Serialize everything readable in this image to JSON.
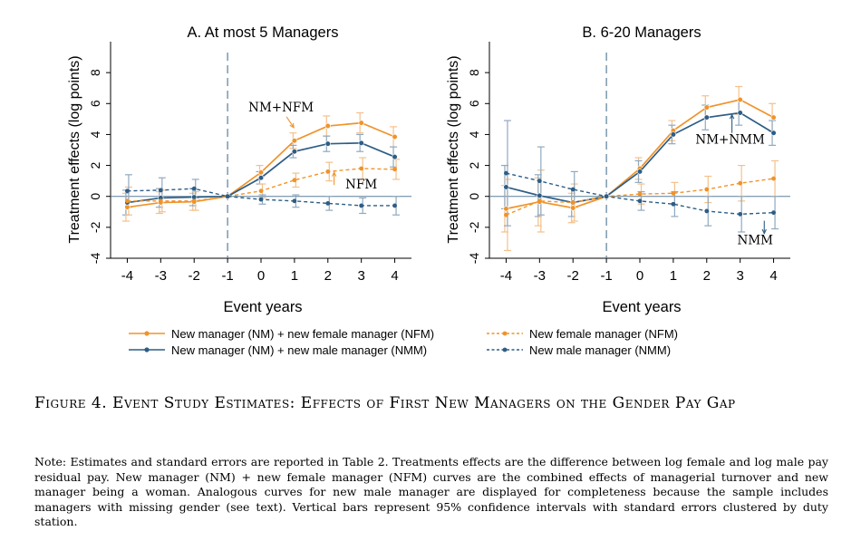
{
  "chart_data": [
    {
      "type": "line",
      "title": "A. At most 5 Managers",
      "xlabel": "Event years",
      "ylabel": "Treatment effects (log points)",
      "x": [
        -4,
        -3,
        -2,
        -1,
        0,
        1,
        2,
        3,
        4
      ],
      "xticks": [
        "-4",
        "-3",
        "-2",
        "-1",
        "0",
        "1",
        "2",
        "3",
        "4"
      ],
      "yticks": [
        "-4",
        "-2",
        "0",
        "2",
        "4",
        "6",
        "8"
      ],
      "xlim": [
        -4.5,
        4.5
      ],
      "ylim": [
        -4,
        10
      ],
      "reference_line_x": -1,
      "series": [
        {
          "name": "New manager (NM) + new female manager (NFM)",
          "key": "nm_nfm",
          "style": "solid",
          "color": "#f0932a",
          "values": [
            -0.7,
            -0.4,
            -0.35,
            0,
            1.55,
            3.6,
            4.55,
            4.75,
            3.85
          ],
          "ci_low": [
            -1.6,
            -1.1,
            -0.9,
            0,
            1.1,
            3.1,
            3.9,
            4.1,
            3.2
          ],
          "ci_high": [
            0.2,
            0.3,
            0.2,
            0,
            2.0,
            4.1,
            5.2,
            5.4,
            4.5
          ]
        },
        {
          "name": "New manager (NM) + new male manager (NMM)",
          "key": "nm_nmm",
          "style": "solid",
          "color": "#2d5d86",
          "values": [
            -0.4,
            -0.1,
            -0.05,
            0,
            1.2,
            2.9,
            3.4,
            3.45,
            2.55
          ],
          "ci_low": [
            -1.2,
            -0.7,
            -0.6,
            0,
            0.8,
            2.5,
            2.9,
            2.9,
            1.9
          ],
          "ci_high": [
            0.4,
            0.5,
            0.5,
            0,
            1.6,
            3.3,
            3.9,
            4.0,
            3.2
          ]
        },
        {
          "name": "New female manager (NFM)",
          "key": "nfm",
          "style": "dashed",
          "color": "#f0932a",
          "values": [
            -0.3,
            -0.3,
            -0.3,
            0,
            0.35,
            1.05,
            1.6,
            1.8,
            1.75
          ],
          "ci_low": [
            -1.2,
            -1.0,
            -0.9,
            0,
            -0.1,
            0.6,
            1.0,
            1.1,
            1.1
          ],
          "ci_high": [
            0.6,
            0.4,
            0.3,
            0,
            0.8,
            1.5,
            2.2,
            2.5,
            2.4
          ]
        },
        {
          "name": "New male manager (NMM)",
          "key": "nmm",
          "style": "dashed",
          "color": "#2d5d86",
          "values": [
            0.35,
            0.4,
            0.5,
            0,
            -0.2,
            -0.3,
            -0.45,
            -0.6,
            -0.6
          ],
          "ci_low": [
            -0.7,
            -0.4,
            -0.1,
            0,
            -0.5,
            -0.7,
            -0.9,
            -1.1,
            -1.2
          ],
          "ci_high": [
            1.4,
            1.2,
            1.1,
            0,
            0.1,
            0.1,
            0.0,
            -0.1,
            0.0
          ]
        }
      ],
      "annotations": [
        {
          "text": "NM+NFM",
          "x": 0.6,
          "y": 5.5
        },
        {
          "text": "NFM",
          "x": 3.0,
          "y": 0.5
        }
      ]
    },
    {
      "type": "line",
      "title": "B. 6-20 Managers",
      "xlabel": "Event years",
      "ylabel": "Treatment effects (log points)",
      "x": [
        -4,
        -3,
        -2,
        -1,
        0,
        1,
        2,
        3,
        4
      ],
      "xticks": [
        "-4",
        "-3",
        "-2",
        "-1",
        "0",
        "1",
        "2",
        "3",
        "4"
      ],
      "yticks": [
        "-4",
        "-2",
        "0",
        "2",
        "4",
        "6",
        "8"
      ],
      "xlim": [
        -4.5,
        4.5
      ],
      "ylim": [
        -4,
        10
      ],
      "reference_line_x": -1,
      "series": [
        {
          "name": "New manager (NM) + new female manager (NFM)",
          "key": "nm_nfm",
          "style": "solid",
          "color": "#f0932a",
          "values": [
            -0.8,
            -0.35,
            -0.75,
            0,
            1.8,
            4.25,
            5.75,
            6.25,
            5.1
          ],
          "ci_low": [
            -2.3,
            -1.9,
            -1.7,
            0,
            1.1,
            3.6,
            5.0,
            5.3,
            4.2
          ],
          "ci_high": [
            0.7,
            1.2,
            0.2,
            0,
            2.5,
            4.9,
            6.5,
            7.1,
            6.0
          ]
        },
        {
          "name": "New manager (NM) + new male manager (NMM)",
          "key": "nm_nmm",
          "style": "solid",
          "color": "#2d5d86",
          "values": [
            0.6,
            0.05,
            -0.4,
            0,
            1.6,
            4.0,
            5.1,
            5.4,
            4.1
          ],
          "ci_low": [
            -0.8,
            -1.3,
            -1.3,
            0,
            0.9,
            3.4,
            4.3,
            4.6,
            3.3
          ],
          "ci_high": [
            2.0,
            1.4,
            0.5,
            0,
            2.3,
            4.6,
            5.9,
            6.2,
            4.9
          ]
        },
        {
          "name": "New female manager (NFM)",
          "key": "nfm",
          "style": "dashed",
          "color": "#f0932a",
          "values": [
            -1.2,
            -0.3,
            -0.4,
            0,
            0.15,
            0.2,
            0.45,
            0.85,
            1.15
          ],
          "ci_low": [
            -3.5,
            -2.3,
            -1.6,
            0,
            -0.5,
            -0.5,
            -0.4,
            -0.3,
            0.0
          ],
          "ci_high": [
            1.1,
            1.7,
            0.8,
            0,
            0.8,
            0.9,
            1.3,
            2.0,
            2.3
          ]
        },
        {
          "name": "New male manager (NMM)",
          "key": "nmm",
          "style": "dashed",
          "color": "#2d5d86",
          "values": [
            1.5,
            1.0,
            0.45,
            0,
            -0.3,
            -0.5,
            -0.95,
            -1.15,
            -1.05
          ],
          "ci_low": [
            -1.9,
            -1.2,
            -0.7,
            0,
            -0.9,
            -1.3,
            -1.9,
            -2.3,
            -2.1
          ],
          "ci_high": [
            4.9,
            3.2,
            1.6,
            0,
            0.3,
            0.3,
            0.0,
            0.0,
            0.0
          ]
        }
      ],
      "annotations": [
        {
          "text": "NM+NMM",
          "x": 2.7,
          "y": 3.4
        },
        {
          "text": "NMM",
          "x": 3.45,
          "y": -3.1
        }
      ]
    }
  ],
  "legend": {
    "nm_nfm": "New manager (NM) + new female manager (NFM)",
    "nm_nmm": "New manager (NM) + new male manager (NMM)",
    "nfm": "New female manager (NFM)",
    "nmm": "New male manager (NMM)"
  },
  "colors": {
    "female": "#f0932a",
    "male": "#2d5d86",
    "axis": "#000000",
    "zero_line": "#5a7f9a",
    "ci_female": "#f4c08a",
    "ci_male": "#8fa9c0"
  },
  "caption": "Figure 4.  Event Study Estimates: Effects of First New Managers on the Gender Pay Gap",
  "note": "Note: Estimates and standard errors are reported in Table 2. Treatments effects are the difference between log female and log male pay residual pay. New manager (NM) + new female manager (NFM) curves are the combined effects of managerial turnover and new manager being a woman. Analogous curves for new male manager are displayed for completeness because the sample includes managers with missing gender (see text). Vertical bars represent 95% confidence intervals with standard errors clustered by duty station."
}
